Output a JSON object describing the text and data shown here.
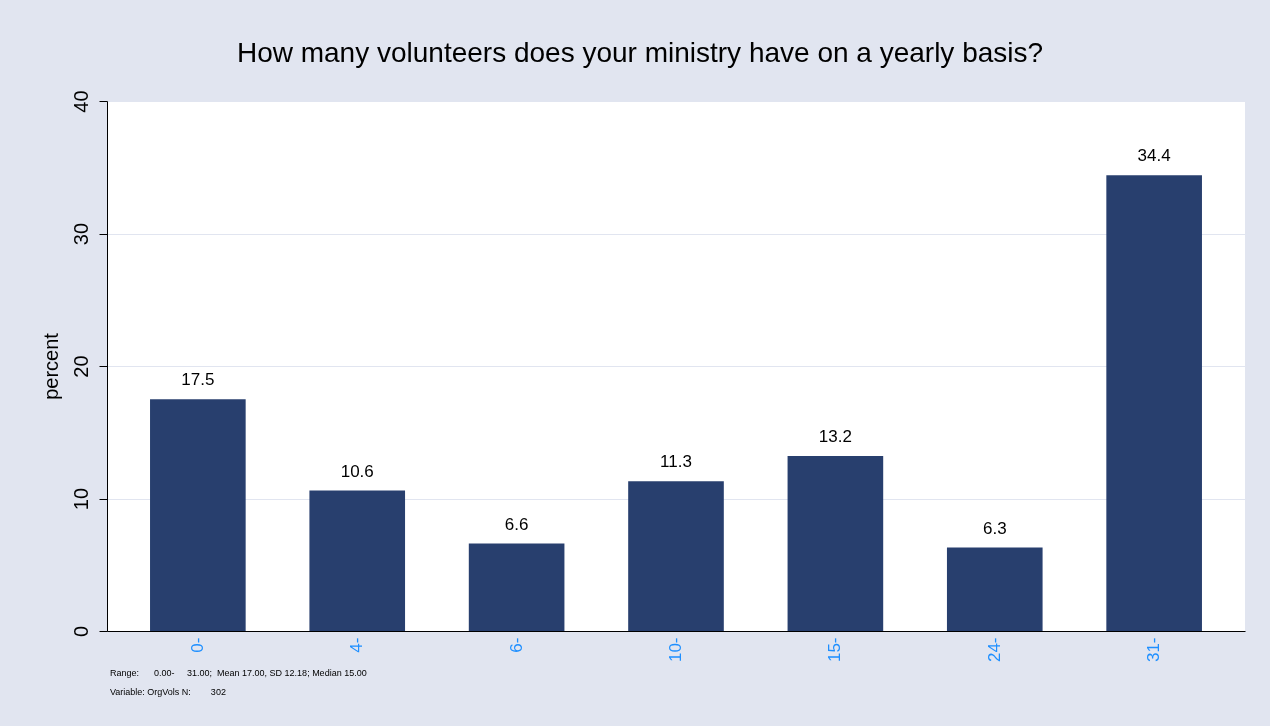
{
  "chart_data": {
    "type": "bar",
    "title": "How many volunteers does your ministry have on a yearly basis?",
    "ylabel": "percent",
    "categories": [
      "0-",
      "4-",
      "6-",
      "10-",
      "15-",
      "24-",
      "31-"
    ],
    "values": [
      17.5,
      10.6,
      6.6,
      11.3,
      13.2,
      6.3,
      34.4
    ],
    "color": "#283f6e",
    "ylim": [
      0,
      40
    ],
    "yticks": [
      0,
      10,
      20,
      30,
      40
    ],
    "grid": "y",
    "data_labels": true,
    "annotations": [
      "Range:      0.00-     31.00;  Mean 17.00, SD 12.18; Median 15.00",
      "Variable: OrgVols N:        302"
    ]
  }
}
